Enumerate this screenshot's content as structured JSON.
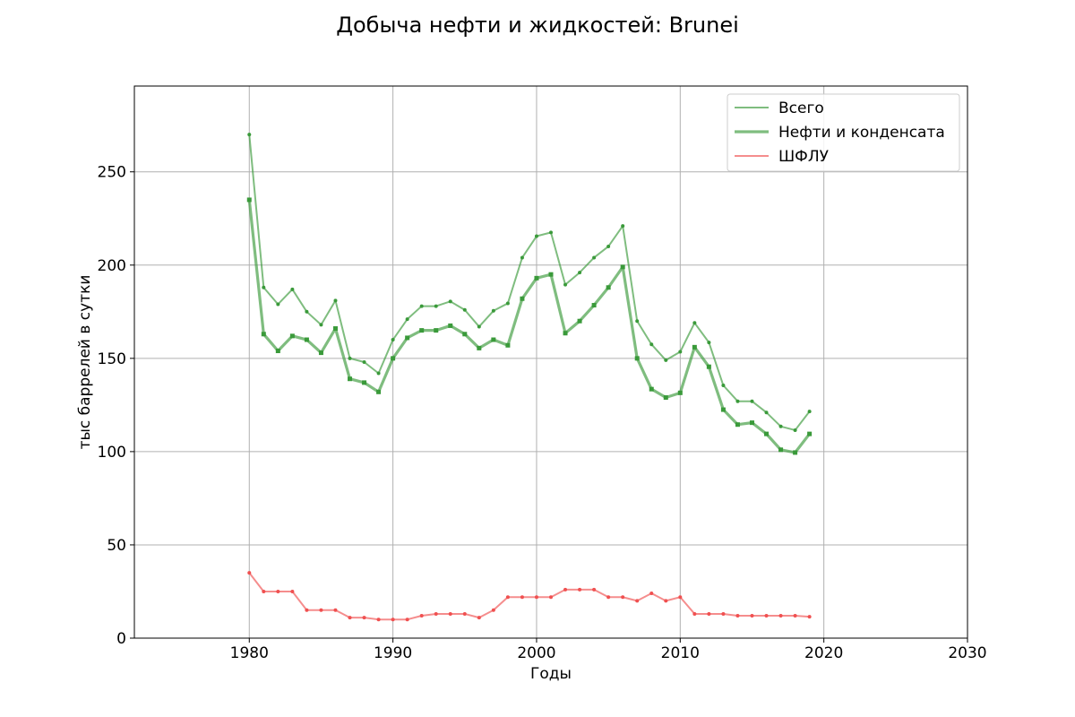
{
  "chart_data": {
    "type": "line",
    "title": "Добыча нефти и жидкостей: Brunei",
    "xlabel": "Годы",
    "ylabel": "тыс баррелей в сутки",
    "xlim": [
      1972,
      2030
    ],
    "ylim": [
      0,
      296
    ],
    "xticks": [
      1980,
      1990,
      2000,
      2010,
      2020,
      2030
    ],
    "yticks": [
      0,
      50,
      100,
      150,
      200,
      250
    ],
    "grid": true,
    "legend_position": "top-right",
    "x": [
      1980,
      1981,
      1982,
      1983,
      1984,
      1985,
      1986,
      1987,
      1988,
      1989,
      1990,
      1991,
      1992,
      1993,
      1994,
      1995,
      1996,
      1997,
      1998,
      1999,
      2000,
      2001,
      2002,
      2003,
      2004,
      2005,
      2006,
      2007,
      2008,
      2009,
      2010,
      2011,
      2012,
      2013,
      2014,
      2015,
      2016,
      2017,
      2018,
      2019
    ],
    "series": [
      {
        "name": "Всего",
        "color": "#3a9a3a",
        "values": [
          270,
          188,
          179,
          187,
          175,
          168,
          181,
          150,
          148,
          142,
          160,
          171,
          178,
          178,
          180.5,
          176,
          167,
          175.5,
          179.5,
          204,
          215.5,
          217.5,
          189.5,
          196,
          204,
          210,
          221,
          170,
          157.5,
          149,
          153.5,
          169,
          158.5,
          135.5,
          127,
          127,
          121,
          113.5,
          111.5,
          121.5
        ]
      },
      {
        "name": "Нефти и конденсата",
        "color": "#3a9a3a",
        "values": [
          235,
          163,
          154,
          162,
          160,
          153,
          166,
          139,
          137,
          132,
          150,
          161,
          165,
          165,
          167.5,
          163,
          155.5,
          160,
          157,
          182,
          193,
          195,
          163.5,
          170,
          178.5,
          188,
          199,
          150,
          133.5,
          129,
          131.5,
          156,
          145.5,
          122.5,
          114.5,
          115.5,
          109.5,
          101,
          99.5,
          109.5
        ]
      },
      {
        "name": "ШФЛУ",
        "color": "#f05050",
        "values": [
          35,
          25,
          25,
          25,
          15,
          15,
          15,
          11,
          11,
          10,
          10,
          10,
          12,
          13,
          13,
          13,
          11,
          15,
          22,
          22,
          22,
          22,
          26,
          26,
          26,
          22,
          22,
          20,
          24,
          20,
          22,
          13,
          13,
          13,
          12,
          12,
          12,
          12,
          12,
          11.5
        ]
      }
    ]
  }
}
